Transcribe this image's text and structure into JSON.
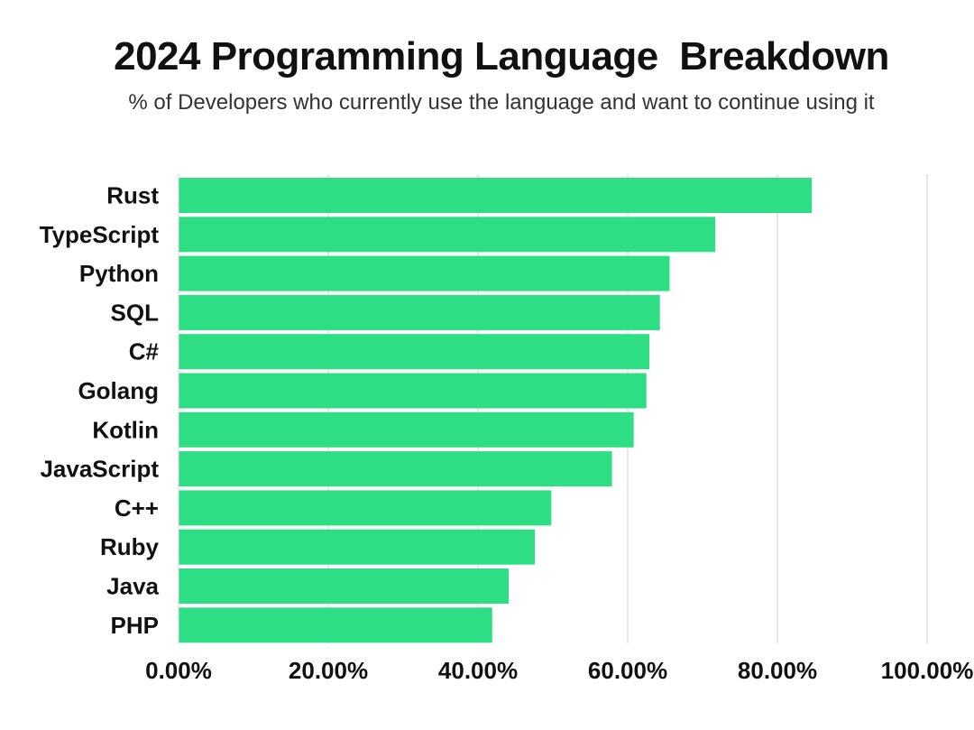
{
  "title": "2024 Programming Language  Breakdown",
  "subtitle": "% of Developers who currently use the language and want to continue using it",
  "colors": {
    "bar": "#2ede85",
    "grid": "#d8d8d8",
    "text": "#111111"
  },
  "chart_data": {
    "type": "bar",
    "orientation": "horizontal",
    "categories": [
      "Rust",
      "TypeScript",
      "Python",
      "SQL",
      "C#",
      "Golang",
      "Kotlin",
      "JavaScript",
      "C++",
      "Ruby",
      "Java",
      "PHP"
    ],
    "values": [
      84.6,
      71.7,
      65.6,
      64.3,
      62.9,
      62.5,
      60.8,
      57.9,
      49.8,
      47.6,
      44.1,
      41.9
    ],
    "title": "2024 Programming Language  Breakdown",
    "subtitle": "% of Developers who currently use the language and want to continue using it",
    "xlim": [
      0,
      100
    ],
    "xticks": [
      0,
      20,
      40,
      60,
      80,
      100
    ],
    "xtick_labels": [
      "0.00%",
      "20.00%",
      "40.00%",
      "60.00%",
      "80.00%",
      "100.00%"
    ],
    "grid": "vertical",
    "legend": "none"
  }
}
